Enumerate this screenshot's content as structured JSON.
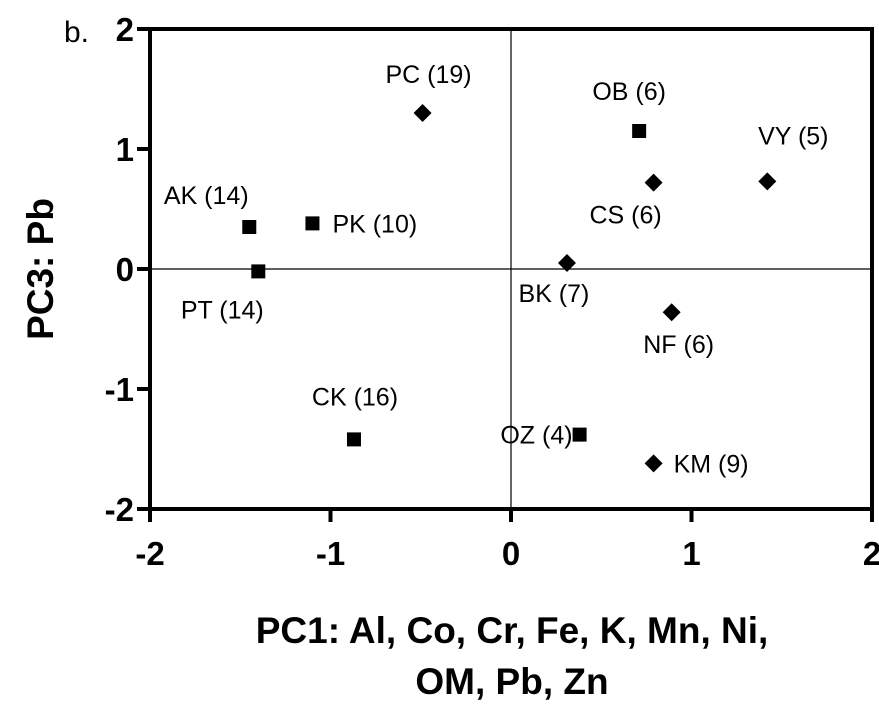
{
  "chart_data": {
    "type": "scatter",
    "panel_label": "b.",
    "xlabel_lines": [
      "PC1: Al, Co, Cr, Fe, K, Mn, Ni,",
      "OM, Pb, Zn"
    ],
    "ylabel": "PC3: Pb",
    "xlim": [
      -2,
      2
    ],
    "ylim": [
      -2,
      2
    ],
    "xticks": [
      -2,
      -1,
      0,
      1,
      2
    ],
    "yticks": [
      -2,
      -1,
      0,
      1,
      2
    ],
    "xtick_labels": [
      "-2",
      "-1",
      "0",
      "1",
      "2"
    ],
    "ytick_labels": [
      "-2",
      "-1",
      "0",
      "1",
      "2"
    ],
    "reference_lines": {
      "x": 0,
      "y": 0
    },
    "marker_color": "#000000",
    "points": [
      {
        "label": "PC (19)",
        "x": -0.49,
        "y": 1.3,
        "marker": "diamond"
      },
      {
        "label": "OB (6)",
        "x": 0.71,
        "y": 1.15,
        "marker": "square"
      },
      {
        "label": "VY (5)",
        "x": 1.42,
        "y": 0.73,
        "marker": "diamond"
      },
      {
        "label": "CS (6)",
        "x": 0.79,
        "y": 0.72,
        "marker": "diamond"
      },
      {
        "label": "AK (14)",
        "x": -1.45,
        "y": 0.35,
        "marker": "square"
      },
      {
        "label": "PK (10)",
        "x": -1.1,
        "y": 0.38,
        "marker": "square"
      },
      {
        "label": "PT (14)",
        "x": -1.4,
        "y": -0.02,
        "marker": "square"
      },
      {
        "label": "BK (7)",
        "x": 0.31,
        "y": 0.05,
        "marker": "diamond"
      },
      {
        "label": "NF (6)",
        "x": 0.89,
        "y": -0.36,
        "marker": "diamond"
      },
      {
        "label": "CK (16)",
        "x": -0.87,
        "y": -1.42,
        "marker": "square"
      },
      {
        "label": "OZ (4)",
        "x": 0.38,
        "y": -1.38,
        "marker": "square"
      },
      {
        "label": "KM (9)",
        "x": 0.79,
        "y": -1.62,
        "marker": "diamond"
      }
    ]
  }
}
